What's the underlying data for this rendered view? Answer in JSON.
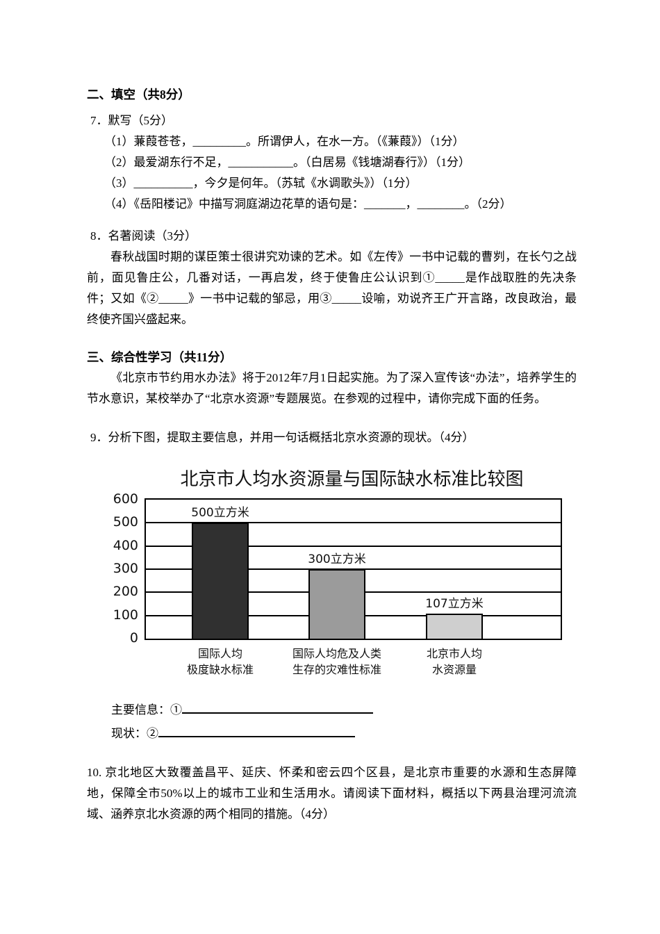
{
  "section_fill": {
    "heading": "二、填空（共8分）",
    "q7_label": "7．默写（5分）",
    "q7_items": [
      "（1）蒹葭苍苍，_________。所谓伊人，在水一方。（《蒹葭》）（1分）",
      "（2）最爱湖东行不足，___________。（白居易《钱塘湖春行》）（1分）",
      "（3）__________，今夕是何年。（苏轼《水调歌头》）（1分）",
      "（4）《岳阳楼记》中描写洞庭湖边花草的语句是：_______，________。（2分）"
    ],
    "q8_label": "8．名著阅读（3分）",
    "q8_paragraph": "春秋战国时期的谋臣策士很讲究劝谏的艺术。如《左传》一书中记载的曹刿，在长勺之战前，面见鲁庄公，几番对话，一再启发，终于使鲁庄公认识到①_____是作战取胜的先决条件；又如《②_____》一书中记载的邹忌，用③_____设喻，劝说齐王广开言路，改良政治，最终使齐国兴盛起来。"
  },
  "section_comprehensive": {
    "heading": "三、综合性学习（共11分）",
    "intro": "《北京市节约用水办法》将于2012年7月1日起实施。为了深入宣传该“办法”，培养学生的节水意识，某校举办了“北京水资源”专题展览。在参观的过程中，请你完成下面的任务。",
    "q9": "9．分析下图，提取主要信息，并用一句话概括北京水资源的现状。（4分）",
    "answer_lines": {
      "info_label": "主要信息：①",
      "status_label": "现状：②"
    },
    "q10": "10. 京北地区大致覆盖昌平、延庆、怀柔和密云四个区县，是北京市重要的水源和生态屏障地，保障全市50%以上的城市工业和生活用水。请阅读下面材料，概括以下两县治理河流流域、涵养京北水资源的两个相同的措施。（4分）"
  },
  "chart_data": {
    "type": "bar",
    "title": "北京市人均水资源量与国际缺水标准比较图",
    "categories": [
      [
        "国际人均",
        "极度缺水标准"
      ],
      [
        "国际人均危及人类",
        "生存的灾难性标准"
      ],
      [
        "北京市人均",
        "水资源量"
      ]
    ],
    "values": [
      500,
      300,
      107
    ],
    "value_labels": [
      "500立方米",
      "300立方米",
      "107立方米"
    ],
    "unit": "立方米",
    "xlabel": "",
    "ylabel": "",
    "ylim": [
      0,
      600
    ],
    "yticks": [
      0,
      100,
      200,
      300,
      400,
      500,
      600
    ],
    "grid": true,
    "legend": false,
    "bar_colors": [
      "#303030",
      "#9b9b9b",
      "#cfcfcf"
    ]
  }
}
